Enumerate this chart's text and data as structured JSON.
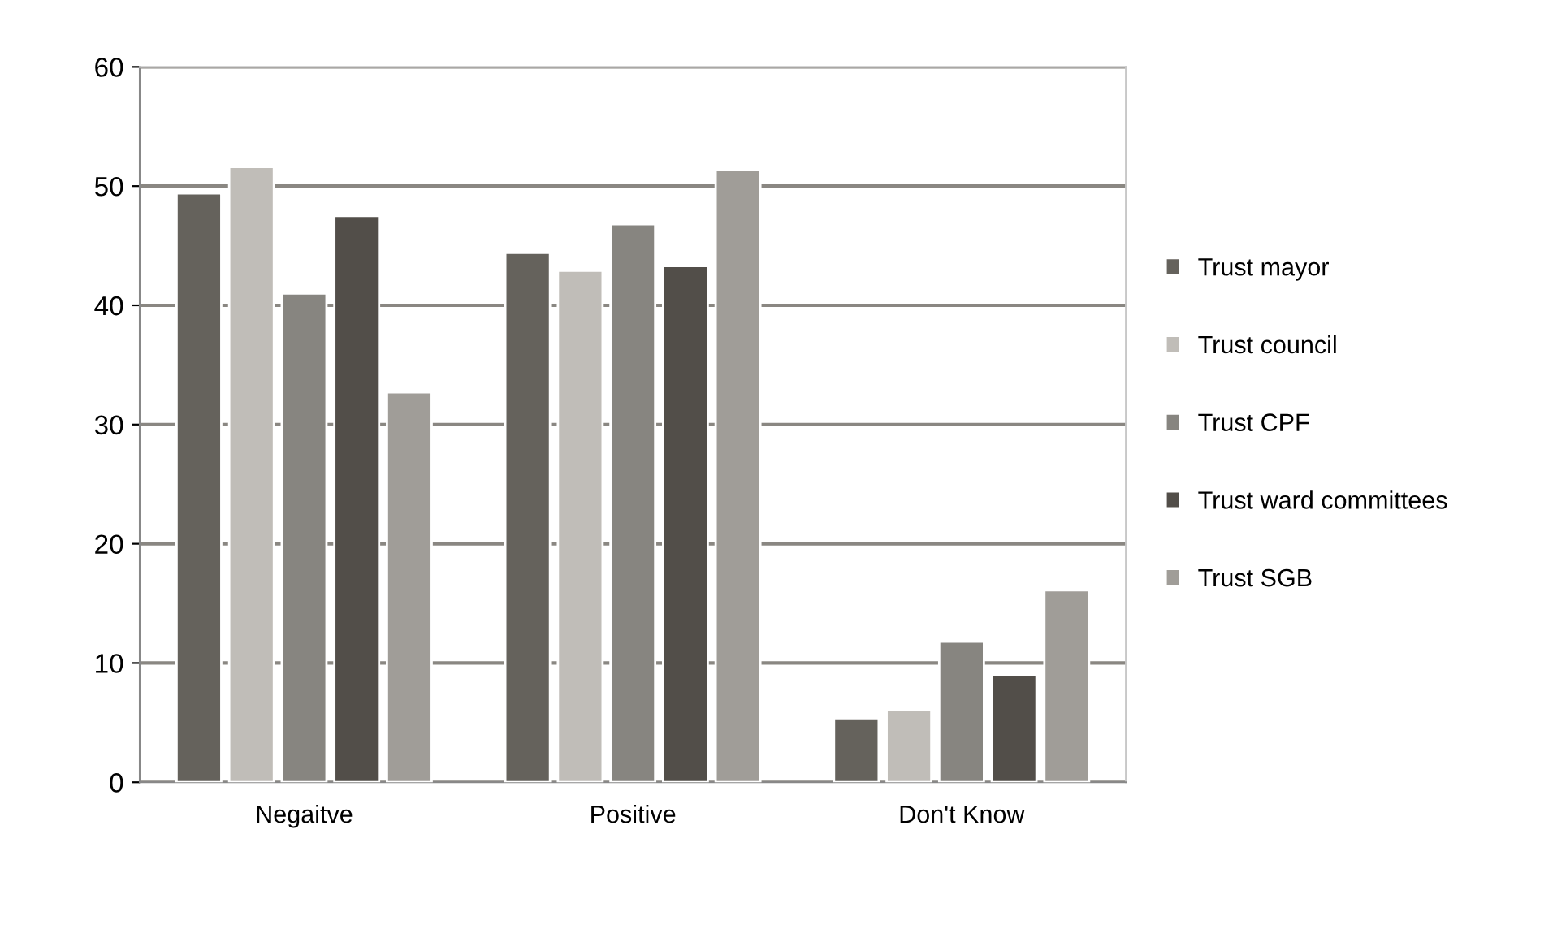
{
  "chart_data": {
    "type": "bar",
    "categories": [
      "Negaitve",
      "Positive",
      "Don't Know"
    ],
    "series": [
      {
        "name": "Trust mayor",
        "color": "#65625c",
        "values": [
          49.4,
          44.4,
          5.3
        ]
      },
      {
        "name": "Trust council",
        "color": "#c0bdb8",
        "values": [
          51.6,
          42.9,
          6.1
        ]
      },
      {
        "name": "Trust CPF",
        "color": "#878580",
        "values": [
          41.0,
          46.8,
          11.8
        ]
      },
      {
        "name": "Trust ward committees",
        "color": "#524e49",
        "values": [
          47.5,
          43.3,
          9.0
        ]
      },
      {
        "name": "Trust SGB",
        "color": "#a09d98",
        "values": [
          32.7,
          51.4,
          16.1
        ]
      }
    ],
    "ylim": [
      0,
      60
    ],
    "yticks": [
      0,
      10,
      20,
      30,
      40,
      50,
      60
    ],
    "grid": "y",
    "legend": "right"
  }
}
